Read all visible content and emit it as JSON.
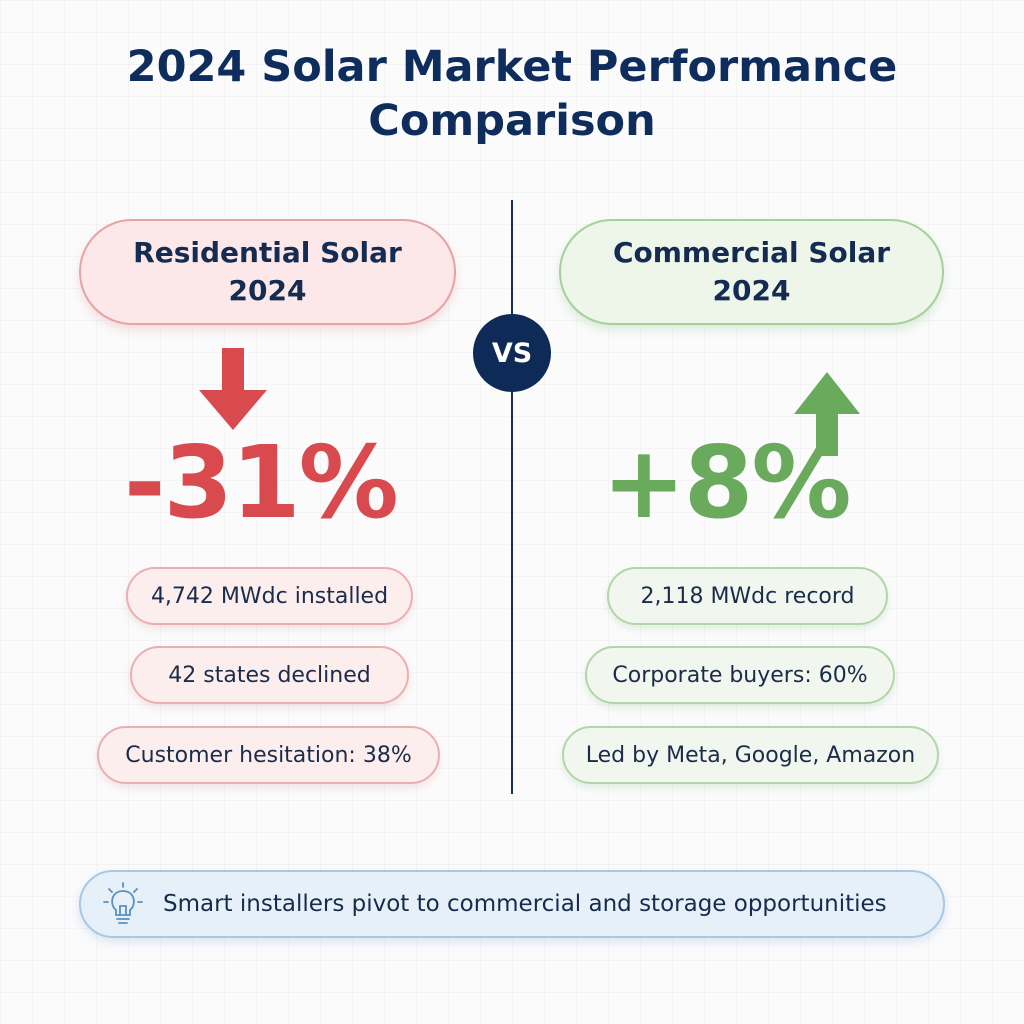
{
  "title": {
    "line1": "2024 Solar Market Performance",
    "line2": "Comparison"
  },
  "vs_label": "VS",
  "residential": {
    "heading_line1": "Residential Solar",
    "heading_line2": "2024",
    "change": "-31%",
    "direction": "down",
    "color": "#d94a4f",
    "stats": [
      "4,742 MWdc installed",
      "42 states declined",
      "Customer hesitation: 38%"
    ]
  },
  "commercial": {
    "heading_line1": "Commercial Solar",
    "heading_line2": "2024",
    "change": "+8%",
    "direction": "up",
    "color": "#6aaa5c",
    "stats": [
      "2,118 MWdc record",
      "Corporate buyers: 60%",
      "Led by Meta, Google, Amazon"
    ]
  },
  "footer": {
    "icon": "lightbulb-icon",
    "text": "Smart installers pivot to commercial and storage opportunities"
  }
}
